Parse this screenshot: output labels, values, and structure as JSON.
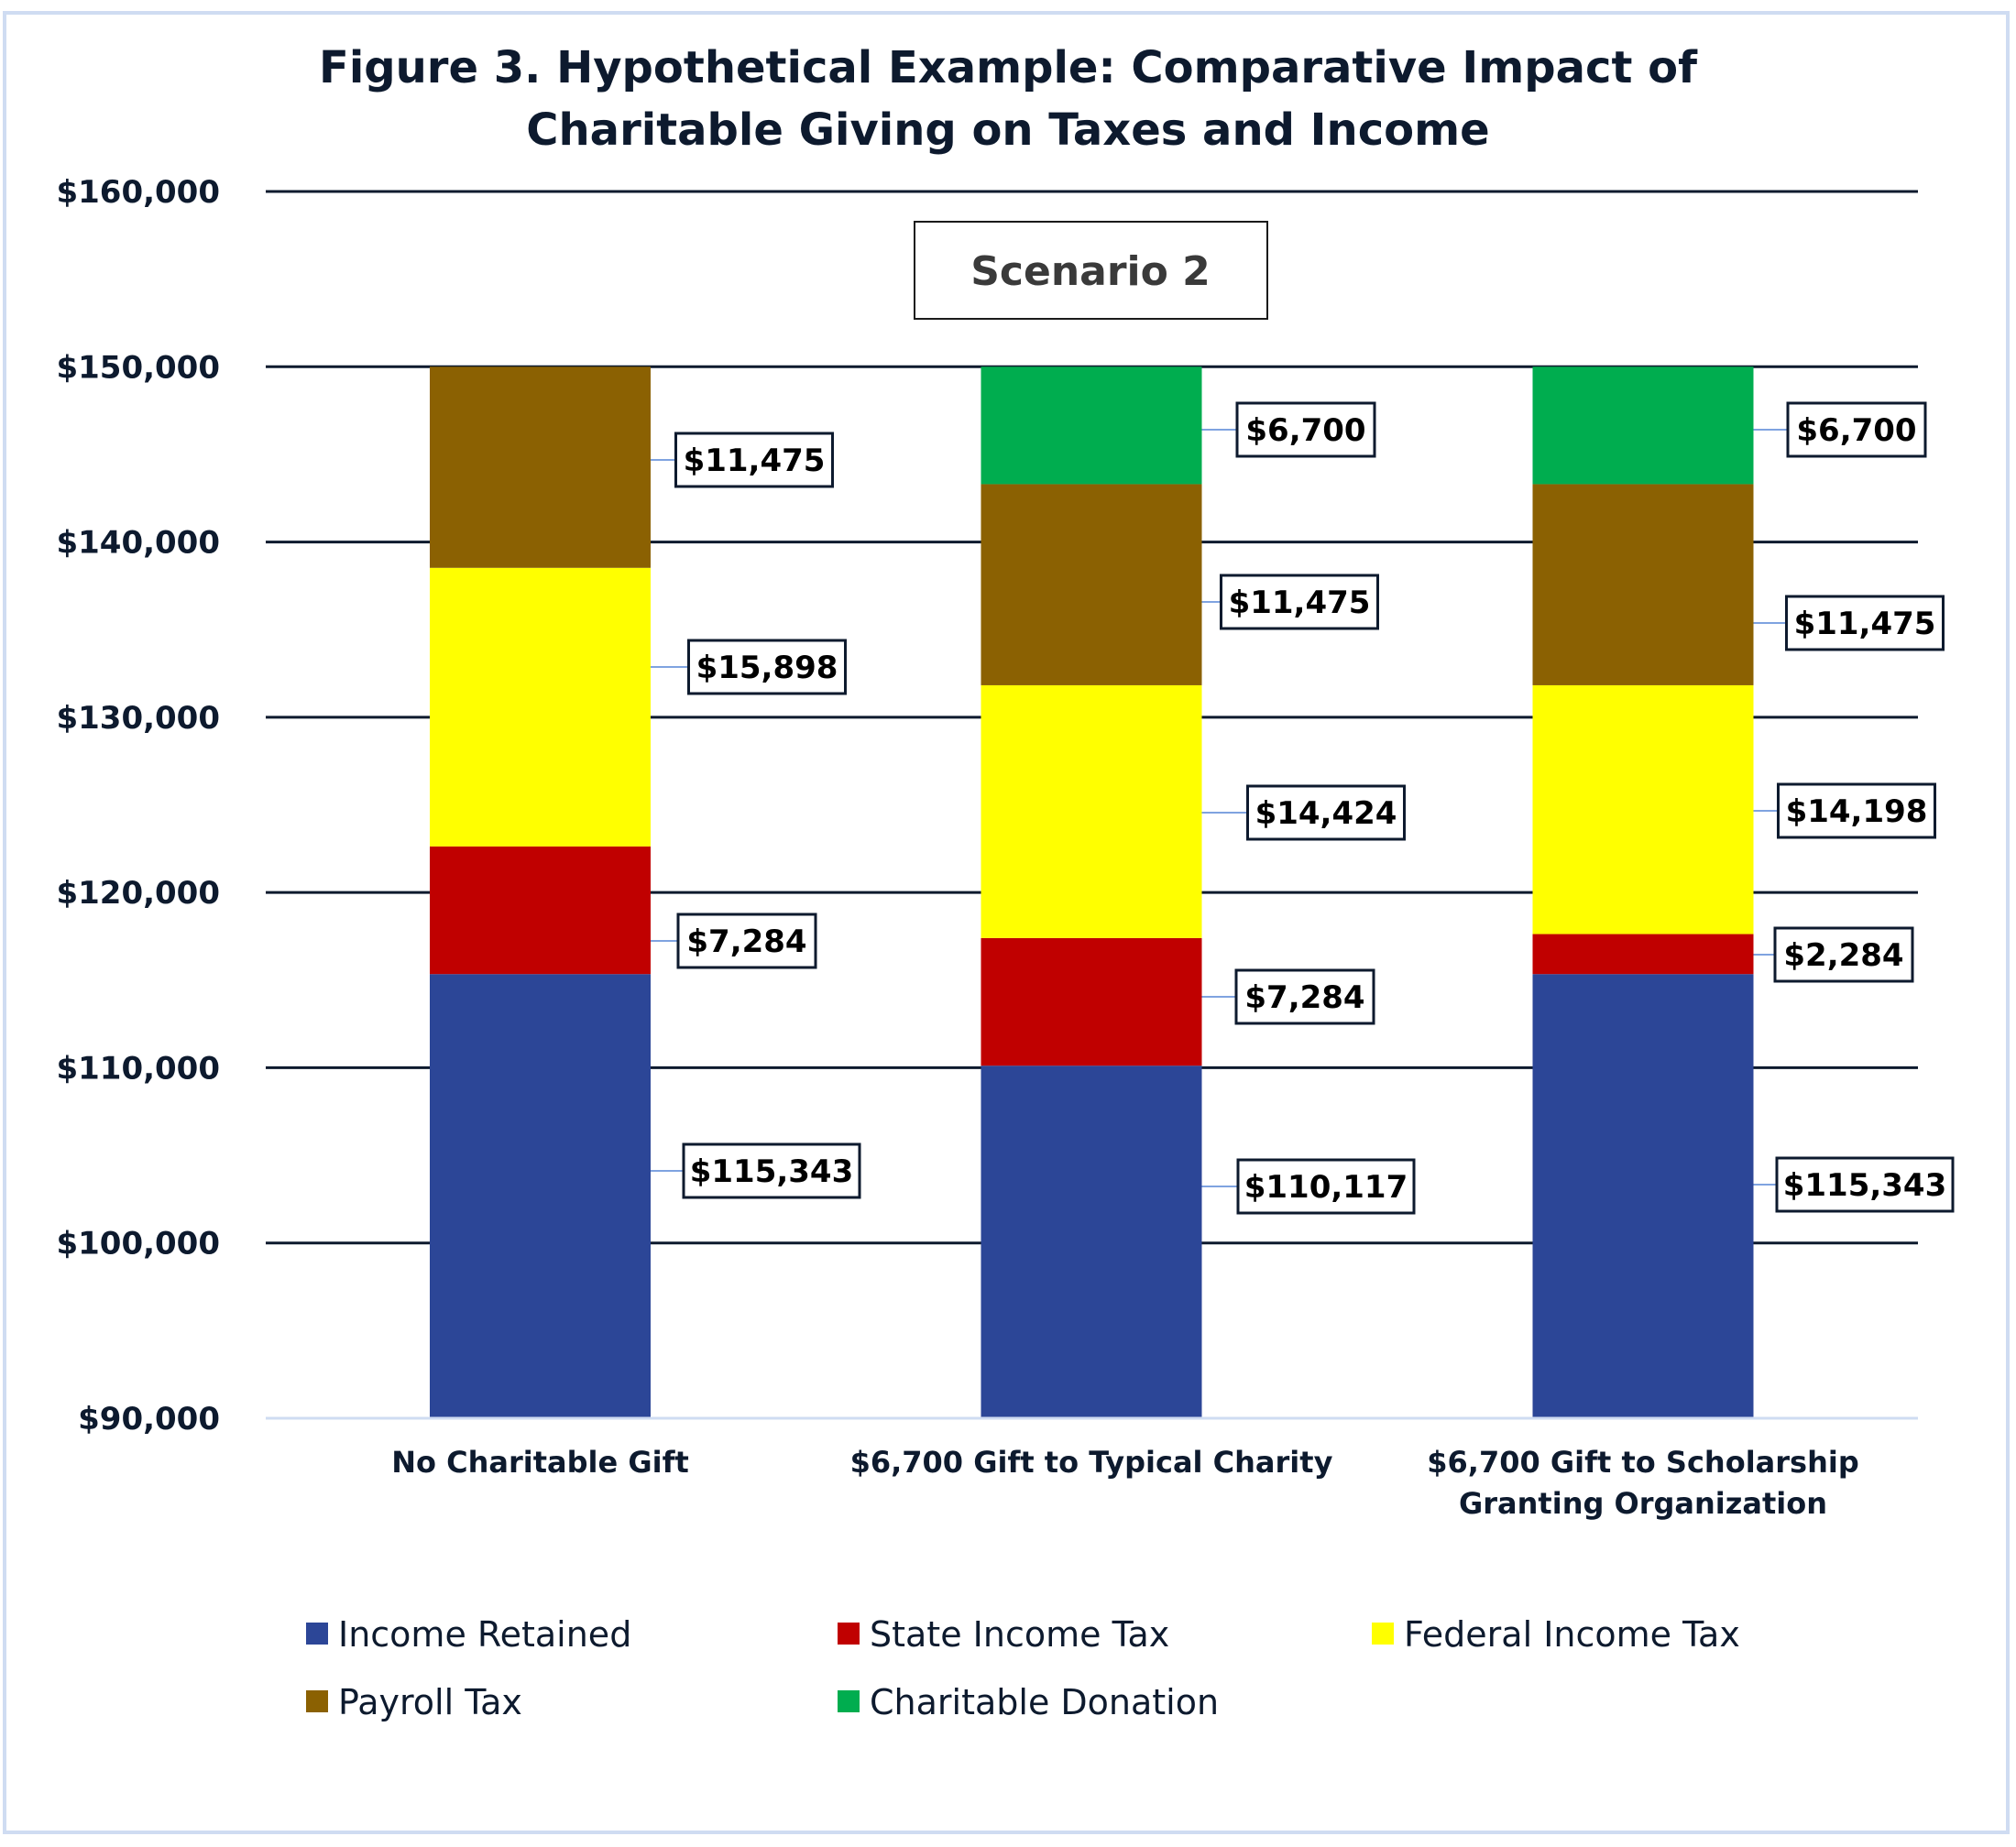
{
  "chart_data": {
    "type": "bar",
    "stacked": true,
    "title": "Figure 3. Hypothetical Example: Comparative Impact of Charitable Giving on Taxes and Income",
    "title_lines": [
      "Figure 3. Hypothetical Example: Comparative Impact of",
      "Charitable Giving on Taxes and Income"
    ],
    "annotation": "Scenario 2",
    "xlabel": "",
    "ylabel": "",
    "ylim": [
      90000,
      160000
    ],
    "yticks": [
      90000,
      100000,
      110000,
      120000,
      130000,
      140000,
      150000,
      160000
    ],
    "ytick_labels": [
      "$90,000",
      "$100,000",
      "$110,000",
      "$120,000",
      "$130,000",
      "$140,000",
      "$150,000",
      "$160,000"
    ],
    "grid": true,
    "categories": [
      [
        "No Charitable Gift"
      ],
      [
        "$6,700 Gift to Typical Charity"
      ],
      [
        "$6,700 Gift to Scholarship",
        "Granting Organization"
      ]
    ],
    "category_names": [
      "No Charitable Gift",
      "$6,700 Gift to Typical Charity",
      "$6,700 Gift to Scholarship Granting Organization"
    ],
    "series": [
      {
        "name": "Income Retained",
        "color": "#2c4697",
        "values": [
          115343,
          110117,
          115343
        ],
        "labels": [
          "$115,343",
          "$110,117",
          "$115,343"
        ]
      },
      {
        "name": "State Income Tax",
        "color": "#c00000",
        "values": [
          7284,
          7284,
          2284
        ],
        "labels": [
          "$7,284",
          "$7,284",
          "$2,284"
        ]
      },
      {
        "name": "Federal Income Tax",
        "color": "#ffff00",
        "values": [
          15898,
          14424,
          14198
        ],
        "labels": [
          "$15,898",
          "$14,424",
          "$14,198"
        ]
      },
      {
        "name": "Payroll Tax",
        "color": "#8b6102",
        "values": [
          11475,
          11475,
          11475
        ],
        "labels": [
          "$11,475",
          "$11,475",
          "$11,475"
        ]
      },
      {
        "name": "Charitable Donation",
        "color": "#00ad4f",
        "values": [
          0,
          6700,
          6700
        ],
        "labels": [
          null,
          "$6,700",
          "$6,700"
        ]
      }
    ],
    "legend": {
      "placement": "bottom",
      "rows": [
        [
          "Income Retained",
          "State Income Tax",
          "Federal Income Tax"
        ],
        [
          "Payroll Tax",
          "Charitable Donation"
        ]
      ]
    }
  },
  "colors": {
    "text": "#0d1a2e",
    "gridline": "#0d1a2e",
    "axis": "#cfdcf2",
    "leader": "#7fa3e0",
    "frame": "#cfdcf2"
  }
}
